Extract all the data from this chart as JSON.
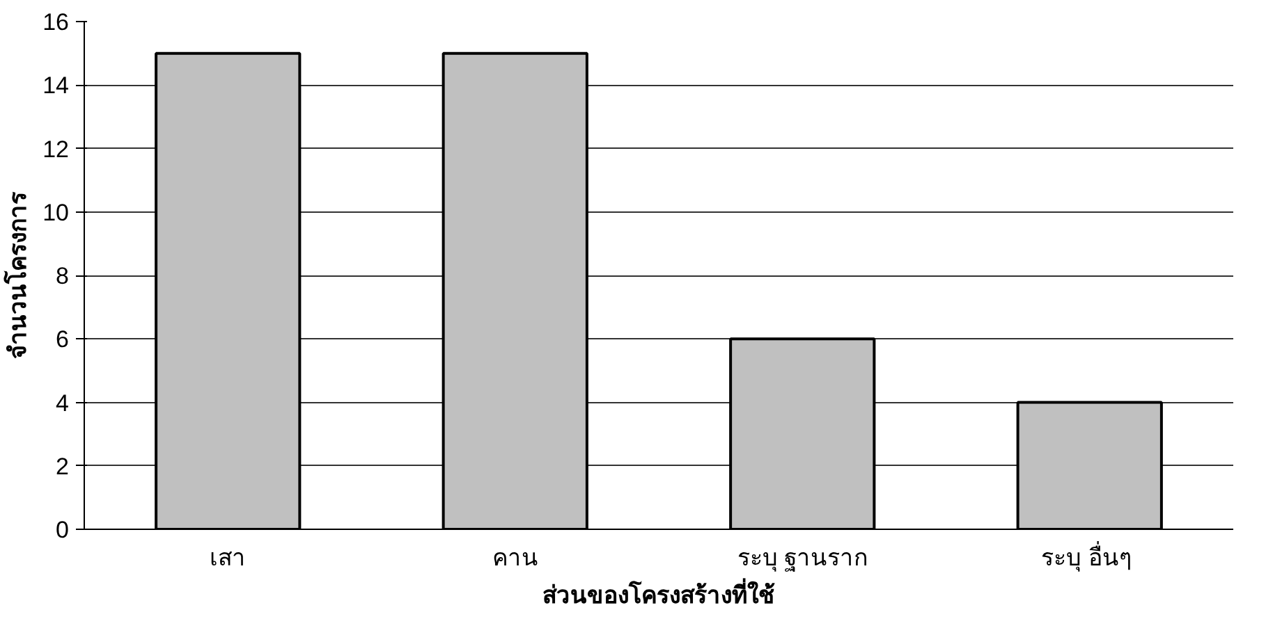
{
  "chart_data": {
    "type": "bar",
    "xlabel": "ส่วนของโครงสร้างที่ใช้",
    "ylabel": "จำนวนโครงการ",
    "categories": [
      "เสา",
      "คาน",
      "ระบุ ฐานราก",
      "ระบุ  อื่นๆ"
    ],
    "values": [
      15,
      15,
      6,
      4
    ],
    "color": "#c0c0c0",
    "ylim": [
      0,
      16
    ],
    "yticks": [
      0,
      2,
      4,
      6,
      8,
      10,
      12,
      14,
      16
    ],
    "grid": "y"
  }
}
